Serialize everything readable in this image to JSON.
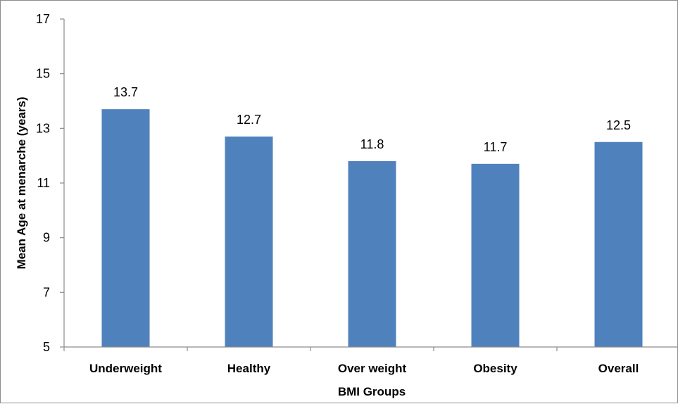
{
  "chart_data": {
    "type": "bar",
    "title": "",
    "xlabel": "BMI Groups",
    "ylabel": "Mean Age at menarche (years)",
    "categories": [
      "Underweight",
      "Healthy",
      "Over weight",
      "Obesity",
      "Overall"
    ],
    "values": [
      13.7,
      12.7,
      11.8,
      11.7,
      12.5
    ],
    "data_labels": [
      "13.7",
      "12.7",
      "11.8",
      "11.7",
      "12.5"
    ],
    "ylim": [
      5,
      17
    ],
    "yticks": [
      5,
      7,
      9,
      11,
      13,
      15,
      17
    ],
    "grid": false,
    "legend": "none",
    "bar_color": "#4f81bd"
  }
}
